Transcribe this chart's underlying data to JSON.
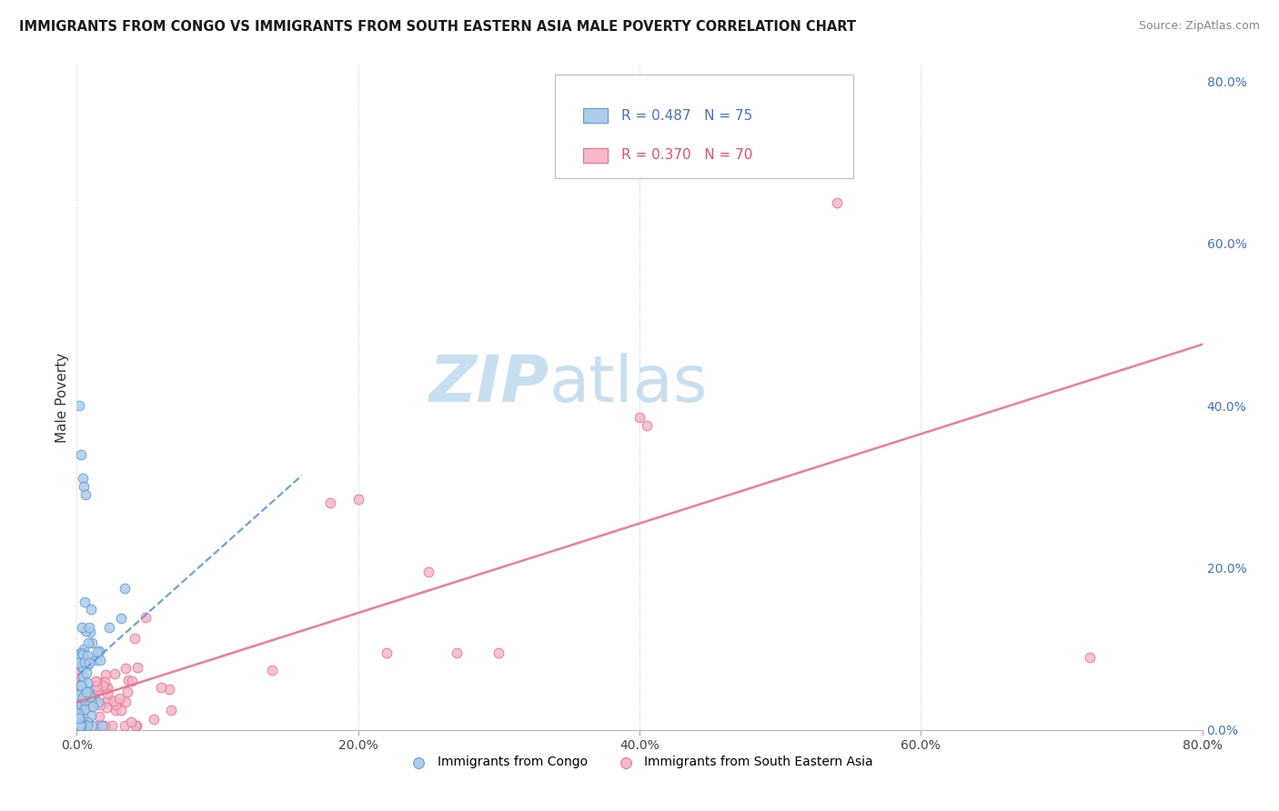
{
  "title": "IMMIGRANTS FROM CONGO VS IMMIGRANTS FROM SOUTH EASTERN ASIA MALE POVERTY CORRELATION CHART",
  "source": "Source: ZipAtlas.com",
  "ylabel": "Male Poverty",
  "right_yticks": [
    "0.0%",
    "20.0%",
    "40.0%",
    "60.0%",
    "80.0%"
  ],
  "right_ytick_vals": [
    0.0,
    0.2,
    0.4,
    0.6,
    0.8
  ],
  "congo_R": 0.487,
  "congo_N": 75,
  "sea_R": 0.37,
  "sea_N": 70,
  "congo_color": "#aecce8",
  "sea_color": "#f4b8c8",
  "congo_edge_color": "#5b9bd5",
  "sea_edge_color": "#e8708a",
  "congo_line_color": "#5b9bd5",
  "sea_line_color": "#e8708a",
  "watermark_color": "#c8dff0",
  "xmin": 0.0,
  "xmax": 0.8,
  "ymin": 0.0,
  "ymax": 0.82,
  "xticks": [
    0.0,
    0.2,
    0.4,
    0.6,
    0.8
  ],
  "xtick_labels": [
    "0.0%",
    "20.0%",
    "40.0%",
    "60.0%",
    "80.0%"
  ]
}
